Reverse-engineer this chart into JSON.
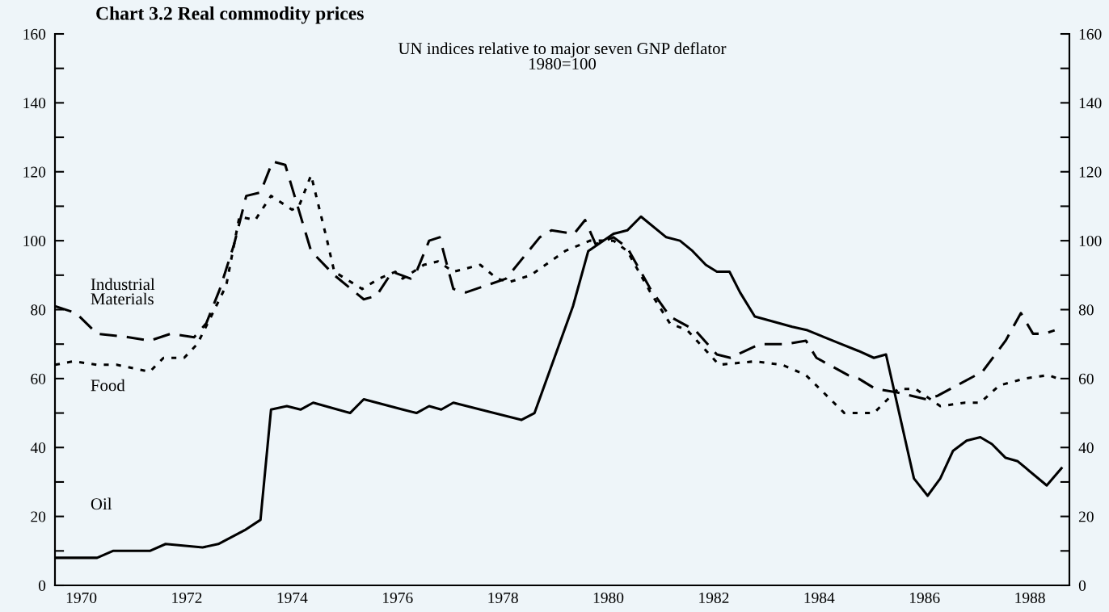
{
  "chart_data": {
    "type": "line",
    "title": "Chart 3.2 Real commodity prices",
    "subtitle": "UN indices relative to major seven GNP deflator\n1980=100",
    "xlim": [
      1970,
      1989.25
    ],
    "xticks": [
      {
        "value": 1970.5,
        "label": "1970"
      },
      {
        "value": 1972.5,
        "label": "1972"
      },
      {
        "value": 1974.5,
        "label": "1974"
      },
      {
        "value": 1976.5,
        "label": "1976"
      },
      {
        "value": 1978.5,
        "label": "1978"
      },
      {
        "value": 1980.5,
        "label": "1980"
      },
      {
        "value": 1982.5,
        "label": "1982"
      },
      {
        "value": 1984.5,
        "label": "1984"
      },
      {
        "value": 1986.5,
        "label": "1986"
      },
      {
        "value": 1988.5,
        "label": "1988"
      }
    ],
    "ylim": [
      0,
      160
    ],
    "yticks": [
      0,
      {
        "value": 10,
        "label": null
      },
      20,
      {
        "value": 30,
        "label": null
      },
      40,
      {
        "value": 50,
        "label": null
      },
      60,
      {
        "value": 70,
        "label": null
      },
      80,
      {
        "value": 90,
        "label": null
      },
      100,
      {
        "value": 110,
        "label": null
      },
      120,
      {
        "value": 130,
        "label": null
      },
      140,
      {
        "value": 150,
        "label": null
      },
      160
    ],
    "y2lim": [
      0,
      160
    ],
    "y2ticks": [
      0,
      {
        "value": 10,
        "label": null
      },
      20,
      {
        "value": 30,
        "label": null
      },
      40,
      {
        "value": 50,
        "label": null
      },
      60,
      {
        "value": 70,
        "label": null
      },
      80,
      {
        "value": 90,
        "label": null
      },
      100,
      {
        "value": 110,
        "label": null
      },
      120,
      {
        "value": 130,
        "label": null
      },
      140,
      {
        "value": 150,
        "label": null
      },
      160
    ],
    "grid": false,
    "legend": false,
    "series": [
      {
        "name": "Industrial\nMaterials",
        "color": "#000000",
        "line_style": "dashed",
        "x": [
          1970,
          1970.4,
          1970.8,
          1971.4,
          1971.8,
          1972.2,
          1972.64,
          1972.87,
          1973.13,
          1973.4,
          1973.63,
          1973.9,
          1974.13,
          1974.37,
          1974.86,
          1975.3,
          1975.86,
          1976.1,
          1976.4,
          1976.75,
          1976.86,
          1977.1,
          1977.3,
          1977.56,
          1977.8,
          1978.56,
          1979.2,
          1979.42,
          1979.85,
          1980.06,
          1980.26,
          1980.6,
          1980.86,
          1981.3,
          1981.67,
          1982.15,
          1982.56,
          1982.82,
          1983.37,
          1983.86,
          1984.25,
          1984.45,
          1985.05,
          1985.25,
          1985.57,
          1985.98,
          1986.53,
          1986.75,
          1987.6,
          1988.04,
          1988.33,
          1988.56,
          1988.77,
          1988.97
        ],
        "values": [
          81,
          79,
          73,
          72,
          71,
          73,
          72,
          76,
          86,
          99,
          113,
          114,
          123,
          122,
          97,
          90,
          83,
          84,
          91,
          89,
          91,
          100,
          101,
          86,
          85,
          89,
          101,
          103,
          102,
          106,
          99,
          101,
          98,
          86,
          78,
          74,
          67,
          66,
          70,
          70,
          71,
          66,
          61,
          60,
          57,
          56,
          54,
          55,
          62,
          71,
          79,
          73,
          73,
          74
        ]
      },
      {
        "name": "Food",
        "color": "#000000",
        "line_style": "dotted",
        "x": [
          1970,
          1970.35,
          1970.8,
          1971.17,
          1971.8,
          1972.06,
          1972.45,
          1972.7,
          1972.93,
          1973.25,
          1973.5,
          1973.8,
          1974.1,
          1974.5,
          1974.63,
          1974.86,
          1975.15,
          1975.3,
          1975.83,
          1976.15,
          1976.46,
          1976.6,
          1977.0,
          1977.27,
          1977.56,
          1978.07,
          1978.39,
          1978.62,
          1979.03,
          1979.68,
          1980.15,
          1980.6,
          1980.86,
          1981.3,
          1981.67,
          1982.0,
          1982.6,
          1983.28,
          1983.8,
          1984.25,
          1984.98,
          1985.54,
          1986.0,
          1986.33,
          1986.8,
          1987.27,
          1987.56,
          1987.92,
          1988.4,
          1988.85,
          1989.03
        ],
        "values": [
          64,
          65,
          64,
          64,
          62,
          66,
          66,
          70,
          77,
          87,
          107,
          106,
          113,
          109,
          110,
          119,
          101,
          91,
          86,
          89,
          91,
          89,
          93,
          94,
          91,
          93,
          89,
          88,
          90,
          97,
          100,
          100,
          97,
          85,
          76,
          74,
          64,
          65,
          64,
          61,
          50,
          50,
          57,
          57,
          52,
          53,
          53,
          58,
          60,
          61,
          60
        ]
      },
      {
        "name": "Oil",
        "color": "#000000",
        "line_style": "solid",
        "x": [
          1970,
          1970.8,
          1971.1,
          1971.8,
          1972.1,
          1972.8,
          1973.1,
          1973.6,
          1973.9,
          1974.1,
          1974.4,
          1974.66,
          1974.9,
          1975.6,
          1975.86,
          1976.6,
          1976.86,
          1977.1,
          1977.33,
          1977.56,
          1978.85,
          1979.1,
          1979.83,
          1980.12,
          1980.6,
          1980.86,
          1981.12,
          1981.6,
          1981.86,
          1982.1,
          1982.35,
          1982.56,
          1982.8,
          1983.0,
          1983.28,
          1983.99,
          1984.28,
          1984.92,
          1985.25,
          1985.54,
          1985.77,
          1986.3,
          1986.56,
          1986.8,
          1987.04,
          1987.3,
          1987.56,
          1987.78,
          1988.04,
          1988.27,
          1988.82,
          1989.1
        ],
        "values": [
          8,
          8,
          10,
          10,
          12,
          11,
          12,
          16,
          19,
          51,
          52,
          51,
          53,
          50,
          54,
          51,
          50,
          52,
          51,
          53,
          48,
          50,
          81,
          97,
          102,
          103,
          107,
          101,
          100,
          97,
          93,
          91,
          91,
          85,
          78,
          75,
          74,
          70,
          68,
          66,
          67,
          31,
          26,
          31,
          39,
          42,
          43,
          41,
          37,
          36,
          29,
          34
        ]
      }
    ]
  }
}
